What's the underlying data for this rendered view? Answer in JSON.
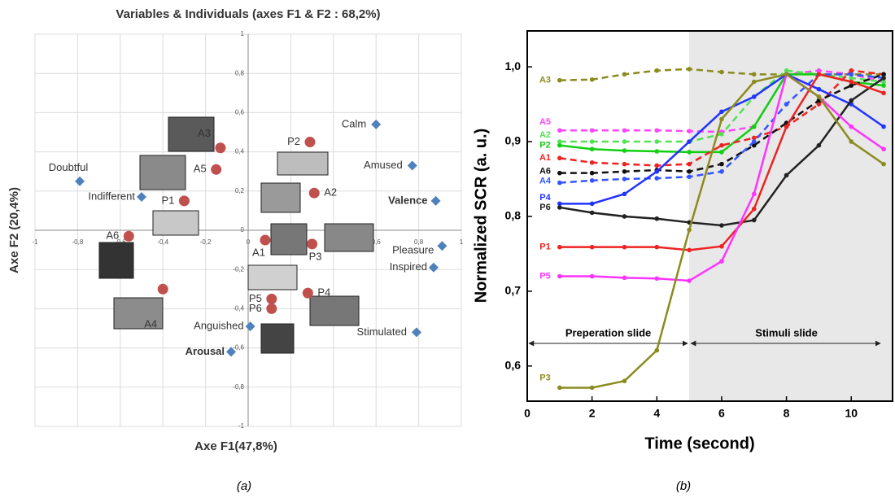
{
  "chart_data": [
    {
      "type": "scatter",
      "title": "Variables & Individuals (axes F1 & F2 : 68,2%)",
      "xlabel": "Axe F1(47,8%)",
      "ylabel": "Axe F2 (20,4%)",
      "caption": "(a)",
      "xlim": [
        -1,
        1
      ],
      "ylim": [
        -1,
        1
      ],
      "grid": true,
      "xticks": [
        -1,
        {
          "value": -0.8,
          "label": "-0,8"
        },
        {
          "value": -0.6,
          "label": "-0,6"
        },
        {
          "value": -0.4,
          "label": "-0,4"
        },
        {
          "value": -0.2,
          "label": "-0,2"
        },
        0,
        {
          "value": 0.2,
          "label": "0,2"
        },
        {
          "value": 0.4,
          "label": "0,4"
        },
        {
          "value": 0.6,
          "label": "0,6"
        },
        {
          "value": 0.8,
          "label": "0,8"
        },
        1
      ],
      "yticks": [
        -1,
        {
          "value": -0.8,
          "label": "-0,8"
        },
        {
          "value": -0.6,
          "label": "-0,6"
        },
        {
          "value": -0.4,
          "label": "-0,4"
        },
        {
          "value": -0.2,
          "label": "-0,2"
        },
        0,
        {
          "value": 0.2,
          "label": "0,2"
        },
        {
          "value": 0.4,
          "label": "0,4"
        },
        {
          "value": 0.6,
          "label": "0,6"
        },
        {
          "value": 0.8,
          "label": "0,8"
        },
        1
      ],
      "series": [
        {
          "color": "#4f81bd",
          "marker": "diamond",
          "labels": [
            "Calm",
            "Amused",
            "Doubtful",
            "Indifferent",
            "Valence",
            "Pleasure",
            "Inspired",
            "Stimulated",
            "Anguished",
            "Arousal"
          ],
          "bold": [
            false,
            false,
            false,
            false,
            true,
            false,
            false,
            false,
            false,
            true
          ],
          "x": [
            0.6,
            0.77,
            -0.79,
            -0.5,
            0.88,
            0.91,
            0.87,
            0.79,
            0.01,
            -0.08
          ],
          "values": [
            0.54,
            0.33,
            0.25,
            0.17,
            0.15,
            -0.08,
            -0.19,
            -0.52,
            -0.49,
            -0.62
          ]
        },
        {
          "color": "#c0504d",
          "marker": "circle",
          "labels": [
            "A3",
            "A5",
            "P2",
            "A2",
            "P1",
            "A6",
            "A1",
            "P3",
            "A4",
            "P4",
            "P5",
            "P6"
          ],
          "bold": [
            false,
            false,
            false,
            false,
            false,
            false,
            false,
            false,
            false,
            false,
            false,
            false
          ],
          "x": [
            -0.13,
            -0.15,
            0.29,
            0.31,
            -0.3,
            -0.56,
            0.08,
            0.3,
            -0.4,
            0.28,
            0.11,
            0.11
          ],
          "values": [
            0.42,
            0.31,
            0.45,
            0.19,
            0.15,
            -0.03,
            -0.05,
            -0.07,
            -0.3,
            -0.32,
            -0.35,
            -0.4
          ]
        }
      ]
    },
    {
      "type": "line",
      "xlabel": "Time (second)",
      "ylabel": "Normalized SCR (a. u.)",
      "caption": "(b)",
      "xlim": [
        0,
        11.3
      ],
      "ylim": [
        0.553,
        1.048
      ],
      "xticks": [
        0,
        2,
        4,
        6,
        8,
        10
      ],
      "yticks": [
        {
          "value": 0.6,
          "label": "0,6"
        },
        {
          "value": 0.7,
          "label": "0,7"
        },
        {
          "value": 0.8,
          "label": "0,8"
        },
        {
          "value": 0.9,
          "label": "0,9"
        },
        {
          "value": 1.0,
          "label": "1,0"
        }
      ],
      "stimulus_onset": 5,
      "shade_color": "#e8e8e8",
      "annotations": [
        "Preperation slide",
        "Stimuli slide"
      ],
      "x": [
        1,
        2,
        3,
        4,
        5,
        6,
        7,
        8,
        9,
        10,
        11
      ],
      "series": [
        {
          "name": "A3",
          "color": "#8b8b1f",
          "dashed": true,
          "values": [
            0.982,
            0.983,
            0.99,
            0.995,
            0.997,
            0.993,
            0.99,
            0.99,
            0.99,
            0.99,
            0.99
          ]
        },
        {
          "name": "A5",
          "color": "#ff44ff",
          "dashed": true,
          "values": [
            0.915,
            0.915,
            0.915,
            0.915,
            0.914,
            0.913,
            0.92,
            0.99,
            0.995,
            0.99,
            0.98
          ]
        },
        {
          "name": "A2",
          "color": "#55e055",
          "dashed": true,
          "values": [
            0.9,
            0.9,
            0.9,
            0.9,
            0.9,
            0.91,
            0.96,
            0.995,
            0.99,
            0.985,
            0.98
          ]
        },
        {
          "name": "P2",
          "color": "#11d011",
          "dashed": false,
          "values": [
            0.895,
            0.89,
            0.888,
            0.887,
            0.886,
            0.886,
            0.92,
            0.99,
            0.99,
            0.98,
            0.975
          ]
        },
        {
          "name": "A1",
          "color": "#ee2222",
          "dashed": true,
          "values": [
            0.878,
            0.872,
            0.87,
            0.868,
            0.87,
            0.895,
            0.905,
            0.92,
            0.95,
            0.995,
            0.99
          ]
        },
        {
          "name": "A6",
          "color": "#111111",
          "dashed": true,
          "values": [
            0.858,
            0.858,
            0.86,
            0.862,
            0.86,
            0.87,
            0.895,
            0.925,
            0.955,
            0.975,
            0.99
          ]
        },
        {
          "name": "A4",
          "color": "#3355ff",
          "dashed": true,
          "values": [
            0.845,
            0.848,
            0.85,
            0.851,
            0.853,
            0.86,
            0.9,
            0.95,
            0.99,
            0.99,
            0.985
          ]
        },
        {
          "name": "P4",
          "color": "#2233ff",
          "dashed": false,
          "values": [
            0.817,
            0.817,
            0.83,
            0.86,
            0.9,
            0.94,
            0.96,
            0.99,
            0.97,
            0.95,
            0.92
          ]
        },
        {
          "name": "P6",
          "color": "#222222",
          "dashed": false,
          "values": [
            0.812,
            0.805,
            0.8,
            0.797,
            0.792,
            0.788,
            0.795,
            0.855,
            0.895,
            0.955,
            0.985
          ]
        },
        {
          "name": "P1",
          "color": "#ee2222",
          "dashed": false,
          "values": [
            0.759,
            0.759,
            0.759,
            0.759,
            0.755,
            0.76,
            0.81,
            0.92,
            0.99,
            0.98,
            0.965
          ]
        },
        {
          "name": "P5",
          "color": "#ff33ff",
          "dashed": false,
          "values": [
            0.72,
            0.72,
            0.718,
            0.717,
            0.714,
            0.74,
            0.83,
            0.99,
            0.96,
            0.92,
            0.89
          ]
        },
        {
          "name": "P3",
          "color": "#8b8b1f",
          "dashed": false,
          "values": [
            0.571,
            0.571,
            0.58,
            0.621,
            0.782,
            0.93,
            0.98,
            0.99,
            0.96,
            0.9,
            0.87
          ]
        }
      ]
    }
  ]
}
